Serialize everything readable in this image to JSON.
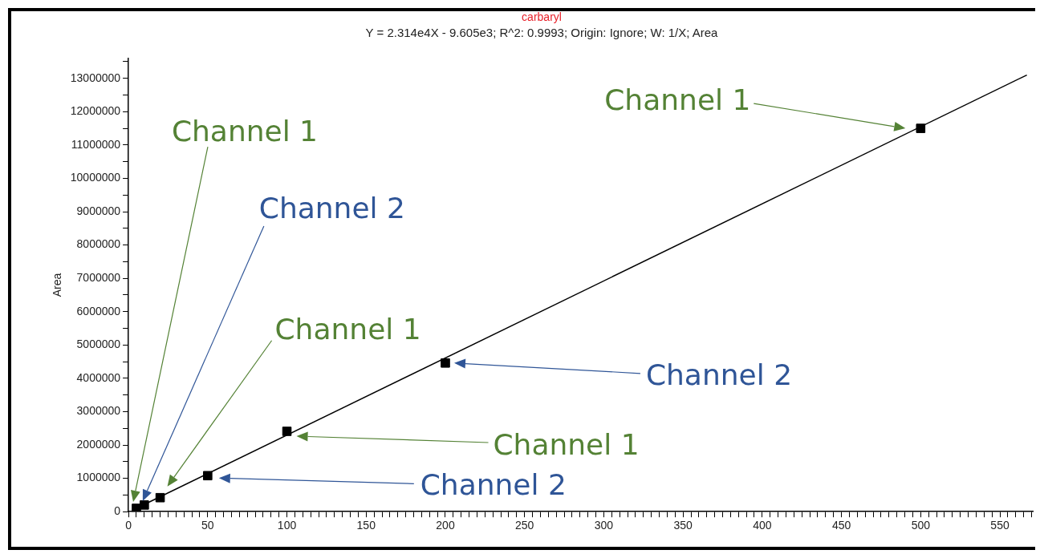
{
  "chart_data": {
    "type": "scatter",
    "title": "carbaryl",
    "subtitle": "Y = 2.314e4X - 9.605e3; R^2: 0.9993; Origin: Ignore; W: 1/X; Area",
    "ylabel": "Area",
    "series": [
      {
        "type": "line",
        "color": "#000000",
        "marker": "none",
        "x": [
          5,
          567
        ],
        "values": [
          100000,
          13100000
        ]
      },
      {
        "type": "scatter",
        "color": "#000000",
        "marker": "square",
        "x": [
          5,
          10,
          20,
          50,
          100,
          200,
          500
        ],
        "values": [
          100000,
          200000,
          420000,
          1080000,
          2410000,
          4460000,
          11500000
        ]
      }
    ],
    "xlim": [
      0,
      571
    ],
    "ylim": [
      0,
      13600000
    ],
    "xticks": [
      0,
      {
        "value": 5,
        "label": null
      },
      {
        "value": 10,
        "label": null
      },
      {
        "value": 15,
        "label": null
      },
      {
        "value": 20,
        "label": null
      },
      {
        "value": 25,
        "label": null
      },
      {
        "value": 30,
        "label": null
      },
      {
        "value": 35,
        "label": null
      },
      {
        "value": 40,
        "label": null
      },
      {
        "value": 45,
        "label": null
      },
      50,
      {
        "value": 55,
        "label": null
      },
      {
        "value": 60,
        "label": null
      },
      {
        "value": 65,
        "label": null
      },
      {
        "value": 70,
        "label": null
      },
      {
        "value": 75,
        "label": null
      },
      {
        "value": 80,
        "label": null
      },
      {
        "value": 85,
        "label": null
      },
      {
        "value": 90,
        "label": null
      },
      {
        "value": 95,
        "label": null
      },
      100,
      {
        "value": 105,
        "label": null
      },
      {
        "value": 110,
        "label": null
      },
      {
        "value": 115,
        "label": null
      },
      {
        "value": 120,
        "label": null
      },
      {
        "value": 125,
        "label": null
      },
      {
        "value": 130,
        "label": null
      },
      {
        "value": 135,
        "label": null
      },
      {
        "value": 140,
        "label": null
      },
      {
        "value": 145,
        "label": null
      },
      150,
      {
        "value": 155,
        "label": null
      },
      {
        "value": 160,
        "label": null
      },
      {
        "value": 165,
        "label": null
      },
      {
        "value": 170,
        "label": null
      },
      {
        "value": 175,
        "label": null
      },
      {
        "value": 180,
        "label": null
      },
      {
        "value": 185,
        "label": null
      },
      {
        "value": 190,
        "label": null
      },
      {
        "value": 195,
        "label": null
      },
      200,
      {
        "value": 205,
        "label": null
      },
      {
        "value": 210,
        "label": null
      },
      {
        "value": 215,
        "label": null
      },
      {
        "value": 220,
        "label": null
      },
      {
        "value": 225,
        "label": null
      },
      {
        "value": 230,
        "label": null
      },
      {
        "value": 235,
        "label": null
      },
      {
        "value": 240,
        "label": null
      },
      {
        "value": 245,
        "label": null
      },
      250,
      {
        "value": 255,
        "label": null
      },
      {
        "value": 260,
        "label": null
      },
      {
        "value": 265,
        "label": null
      },
      {
        "value": 270,
        "label": null
      },
      {
        "value": 275,
        "label": null
      },
      {
        "value": 280,
        "label": null
      },
      {
        "value": 285,
        "label": null
      },
      {
        "value": 290,
        "label": null
      },
      {
        "value": 295,
        "label": null
      },
      300,
      {
        "value": 305,
        "label": null
      },
      {
        "value": 310,
        "label": null
      },
      {
        "value": 315,
        "label": null
      },
      {
        "value": 320,
        "label": null
      },
      {
        "value": 325,
        "label": null
      },
      {
        "value": 330,
        "label": null
      },
      {
        "value": 335,
        "label": null
      },
      {
        "value": 340,
        "label": null
      },
      {
        "value": 345,
        "label": null
      },
      350,
      {
        "value": 355,
        "label": null
      },
      {
        "value": 360,
        "label": null
      },
      {
        "value": 365,
        "label": null
      },
      {
        "value": 370,
        "label": null
      },
      {
        "value": 375,
        "label": null
      },
      {
        "value": 380,
        "label": null
      },
      {
        "value": 385,
        "label": null
      },
      {
        "value": 390,
        "label": null
      },
      {
        "value": 395,
        "label": null
      },
      400,
      {
        "value": 405,
        "label": null
      },
      {
        "value": 410,
        "label": null
      },
      {
        "value": 415,
        "label": null
      },
      {
        "value": 420,
        "label": null
      },
      {
        "value": 425,
        "label": null
      },
      {
        "value": 430,
        "label": null
      },
      {
        "value": 435,
        "label": null
      },
      {
        "value": 440,
        "label": null
      },
      {
        "value": 445,
        "label": null
      },
      450,
      {
        "value": 455,
        "label": null
      },
      {
        "value": 460,
        "label": null
      },
      {
        "value": 465,
        "label": null
      },
      {
        "value": 470,
        "label": null
      },
      {
        "value": 475,
        "label": null
      },
      {
        "value": 480,
        "label": null
      },
      {
        "value": 485,
        "label": null
      },
      {
        "value": 490,
        "label": null
      },
      {
        "value": 495,
        "label": null
      },
      500,
      {
        "value": 505,
        "label": null
      },
      {
        "value": 510,
        "label": null
      },
      {
        "value": 515,
        "label": null
      },
      {
        "value": 520,
        "label": null
      },
      {
        "value": 525,
        "label": null
      },
      {
        "value": 530,
        "label": null
      },
      {
        "value": 535,
        "label": null
      },
      {
        "value": 540,
        "label": null
      },
      {
        "value": 545,
        "label": null
      },
      550,
      {
        "value": 555,
        "label": null
      },
      {
        "value": 560,
        "label": null
      },
      {
        "value": 565,
        "label": null
      },
      {
        "value": 570,
        "label": null
      }
    ],
    "yticks": [
      0,
      {
        "value": 500000,
        "label": null
      },
      1000000,
      {
        "value": 1500000,
        "label": null
      },
      2000000,
      {
        "value": 2500000,
        "label": null
      },
      3000000,
      {
        "value": 3500000,
        "label": null
      },
      4000000,
      {
        "value": 4500000,
        "label": null
      },
      5000000,
      {
        "value": 5500000,
        "label": null
      },
      6000000,
      {
        "value": 6500000,
        "label": null
      },
      7000000,
      {
        "value": 7500000,
        "label": null
      },
      8000000,
      {
        "value": 8500000,
        "label": null
      },
      9000000,
      {
        "value": 9500000,
        "label": null
      },
      10000000,
      {
        "value": 10500000,
        "label": null
      },
      11000000,
      {
        "value": 11500000,
        "label": null
      },
      12000000,
      {
        "value": 12500000,
        "label": null
      },
      13000000,
      {
        "value": 13500000,
        "label": null
      }
    ],
    "annotations": [
      "Channel 1",
      "Channel 2",
      "Channel 1",
      "Channel 2",
      "Channel 1",
      "Channel 2",
      "Channel 1"
    ],
    "grid": false,
    "legend": false
  }
}
